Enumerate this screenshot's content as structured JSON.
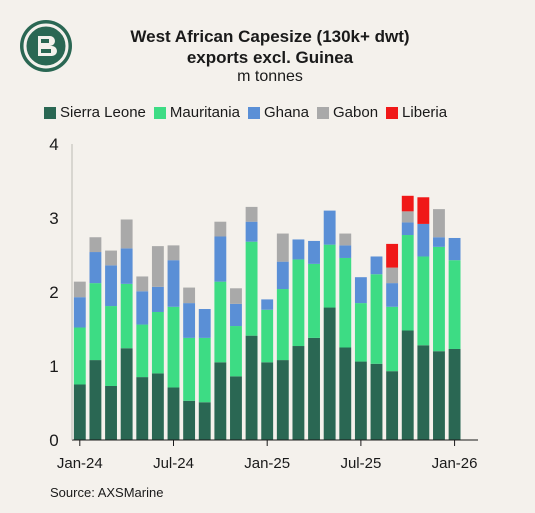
{
  "header": {
    "title_line1": "West African Capesize (130k+ dwt)",
    "title_line2": "exports excl. Guinea",
    "subtitle": "m tonnes"
  },
  "footer": {
    "source": "Source: AXSMarine"
  },
  "colors": {
    "background": "#f4f1ec",
    "logo": "#2a6753",
    "Sierra Leone": "#2a6753",
    "Mauritania": "#3ddc84",
    "Ghana": "#5a8fd6",
    "Gabon": "#a9a9a9",
    "Liberia": "#f01818"
  },
  "chart_data": {
    "type": "bar",
    "stacked": true,
    "legend_position": "top",
    "categories": [
      "Jan-24",
      "Feb-24",
      "Mar-24",
      "Apr-24",
      "May-24",
      "Jun-24",
      "Jul-24",
      "Aug-24",
      "Sep-24",
      "Oct-24",
      "Nov-24",
      "Dec-24",
      "Jan-25",
      "Feb-25",
      "Mar-25",
      "Apr-25",
      "May-25",
      "Jun-25",
      "Jul-25",
      "Aug-25",
      "Sep-25",
      "Oct-25",
      "Nov-25",
      "Dec-25",
      "Jan-26",
      "Feb-26"
    ],
    "x_tick_labels": [
      "Jan-24",
      "Jul-24",
      "Jan-25",
      "Jul-25",
      "Jan-26"
    ],
    "y_ticks": [
      "0",
      "1",
      "2",
      "3",
      "4"
    ],
    "ylim": [
      0,
      4
    ],
    "series": [
      {
        "name": "Sierra Leone",
        "values": [
          0.75,
          1.08,
          0.73,
          1.24,
          0.85,
          0.9,
          0.71,
          0.53,
          0.51,
          1.05,
          0.86,
          1.41,
          1.05,
          1.08,
          1.27,
          1.38,
          1.79,
          1.25,
          1.06,
          1.03,
          0.93,
          1.48,
          1.28,
          1.2,
          1.23,
          0
        ]
      },
      {
        "name": "Mauritania",
        "values": [
          0.77,
          1.04,
          1.08,
          0.87,
          0.71,
          0.83,
          1.09,
          0.85,
          0.87,
          1.09,
          0.68,
          1.27,
          0.71,
          0.96,
          1.17,
          1.0,
          0.85,
          1.21,
          0.79,
          1.21,
          0.87,
          1.29,
          1.2,
          1.41,
          1.2,
          0
        ]
      },
      {
        "name": "Ghana",
        "values": [
          0.41,
          0.42,
          0.55,
          0.48,
          0.45,
          0.34,
          0.63,
          0.47,
          0.39,
          0.61,
          0.3,
          0.27,
          0.14,
          0.37,
          0.27,
          0.31,
          0.46,
          0.17,
          0.35,
          0.24,
          0.32,
          0.17,
          0.44,
          0.13,
          0.3,
          0
        ]
      },
      {
        "name": "Gabon",
        "values": [
          0.21,
          0.2,
          0.2,
          0.39,
          0.2,
          0.55,
          0.2,
          0.21,
          0,
          0.2,
          0.21,
          0.2,
          0,
          0.38,
          0,
          0,
          0,
          0.16,
          0,
          0,
          0.21,
          0.15,
          0,
          0.38,
          0,
          0
        ]
      },
      {
        "name": "Liberia",
        "values": [
          0,
          0,
          0,
          0,
          0,
          0,
          0,
          0,
          0,
          0,
          0,
          0,
          0,
          0,
          0,
          0,
          0,
          0,
          0,
          0,
          0.32,
          0.21,
          0.36,
          0,
          0,
          0
        ]
      }
    ]
  }
}
